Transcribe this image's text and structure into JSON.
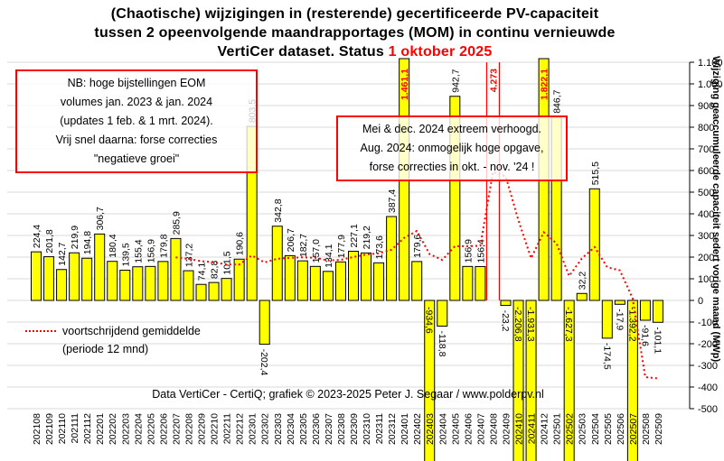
{
  "title": {
    "line1": "(Chaotische) wijzigingen in (resterende) gecertificeerde PV-capaciteit",
    "line2": "tussen 2 opeenvolgende maandrapportages (MOM) in continu vernieuwde",
    "line3_prefix": "VertiCer dataset. Status ",
    "line3_date": "1 oktober 2025"
  },
  "notes": {
    "eom": [
      "NB: hoge bijstellingen EOM",
      "volumes jan. 2023 & jan. 2024",
      "(updates 1 feb. & 1 mrt. 2024).",
      "Vrij snel daarna: forse correcties",
      "\"negatieve groei\""
    ],
    "mid2024": [
      "Mei & dec. 2024 extreem verhoogd.",
      "Aug. 2024: onmogelijk hoge opgave,",
      "forse correcties in okt. - nov. '24 !"
    ]
  },
  "legend": {
    "line1": "voortschrijdend gemiddelde",
    "line2": "(periode 12 mnd)"
  },
  "copyright": "Data VertiCer - CertiQ; grafiek © 2023-2025 Peter J. Segaar / www.polderpv.nl",
  "colors": {
    "bar": "#ffff00",
    "bar_border": "#000000",
    "line": "#ff0000",
    "grid": "#d9d9d9",
    "red": "#ff0000",
    "text": "#000000"
  },
  "chart_data": {
    "type": "bar",
    "title": "(Chaotische) wijzigingen in (resterende) gecertificeerde PV-capaciteit tussen 2 opeenvolgende maandrapportages (MOM) in continu vernieuwde VertiCer dataset. Status 1 oktober 2025",
    "ylabel": "Wijziging geaccumuleerde capaciteit sedert vorige maand (MWp)",
    "xlabel": "",
    "ylim": [
      -500,
      1100
    ],
    "ytick_step": 100,
    "ytick_labels": [
      "1.100",
      "1.000",
      "900",
      "800",
      "700",
      "600",
      "500",
      "400",
      "300",
      "200",
      "100",
      "0",
      "-100",
      "-200",
      "-300",
      "-400",
      "-500"
    ],
    "grid": true,
    "legend_position": "bottom-left",
    "categories": [
      "202108",
      "202109",
      "202110",
      "202111",
      "202112",
      "202201",
      "202202",
      "202203",
      "202204",
      "202205",
      "202206",
      "202207",
      "202208",
      "202209",
      "202210",
      "202211",
      "202212",
      "202301",
      "202302",
      "202303",
      "202304",
      "202305",
      "202306",
      "202307",
      "202308",
      "202309",
      "202310",
      "202311",
      "202312",
      "202401",
      "202402",
      "202403",
      "202404",
      "202405",
      "202406",
      "202407",
      "202408",
      "202409",
      "202410",
      "202411",
      "202412",
      "202501",
      "202502",
      "202503",
      "202504",
      "202505",
      "202506",
      "202507",
      "202508",
      "202509"
    ],
    "values": [
      224.4,
      201.8,
      142.7,
      219.9,
      194.8,
      306.7,
      180.4,
      139.5,
      155.4,
      156.9,
      179.8,
      285.9,
      137.2,
      74.1,
      82.8,
      101.5,
      190.6,
      803.5,
      -202.4,
      342.8,
      206.7,
      182.7,
      157.0,
      134.1,
      177.9,
      227.1,
      219.2,
      173.6,
      387.4,
      1461.1,
      179.6,
      -934.6,
      -118.8,
      942.7,
      156.9,
      156.4,
      4273,
      -23.2,
      -2206.8,
      -1931.3,
      1822.1,
      846.7,
      -1627.3,
      32.2,
      515.5,
      -174.5,
      -17.9,
      -1392.2,
      -91.6,
      -101.1
    ],
    "bar_labels": [
      "224,4",
      "201,8",
      "142,7",
      "219,9",
      "194,8",
      "306,7",
      "180,4",
      "139,5",
      "155,4",
      "156,9",
      "179,8",
      "285,9",
      "137,2",
      "74,1",
      "82,8",
      "101,5",
      "190,6",
      "803,5",
      "-202,4",
      "342,8",
      "206,7",
      "182,7",
      "157,0",
      "134,1",
      "177,9",
      "227,1",
      "219,2",
      "173,6",
      "387,4",
      "1.461,1",
      "179,6",
      "-934,6",
      "-118,8",
      "942,7",
      "156,9",
      "156,4",
      "4.273",
      "-23,2",
      "-2.206,8",
      "-1.931,3",
      "1.822,1",
      "846,7",
      "-1.627,3",
      "32,2",
      "515,5",
      "-174,5",
      "-17,9",
      "-1.392,2",
      "-91,6",
      "-101,1"
    ],
    "offscale_column": {
      "category": "202408",
      "label": "4.273"
    },
    "moving_average": {
      "name": "voortschrijdend gemiddelde (periode 12 mnd)",
      "window": 12,
      "start_category": "202207",
      "values": [
        199.0,
        191.8,
        181.1,
        176.1,
        166.3,
        165.9,
        207.3,
        175.4,
        192.3,
        196.6,
        198.8,
        196.9,
        184.2,
        187.6,
        200.4,
        211.7,
        217.7,
        234.1,
        288.9,
        320.8,
        214.3,
        187.2,
        250.5,
        250.5,
        252.4,
        593.6,
        572.8,
        370.6,
        195.2,
        314.8,
        263.6,
        113.0,
        193.6,
        246.4,
        153.3,
        138.7,
        9.7,
        -354.0,
        -360.5
      ]
    }
  }
}
